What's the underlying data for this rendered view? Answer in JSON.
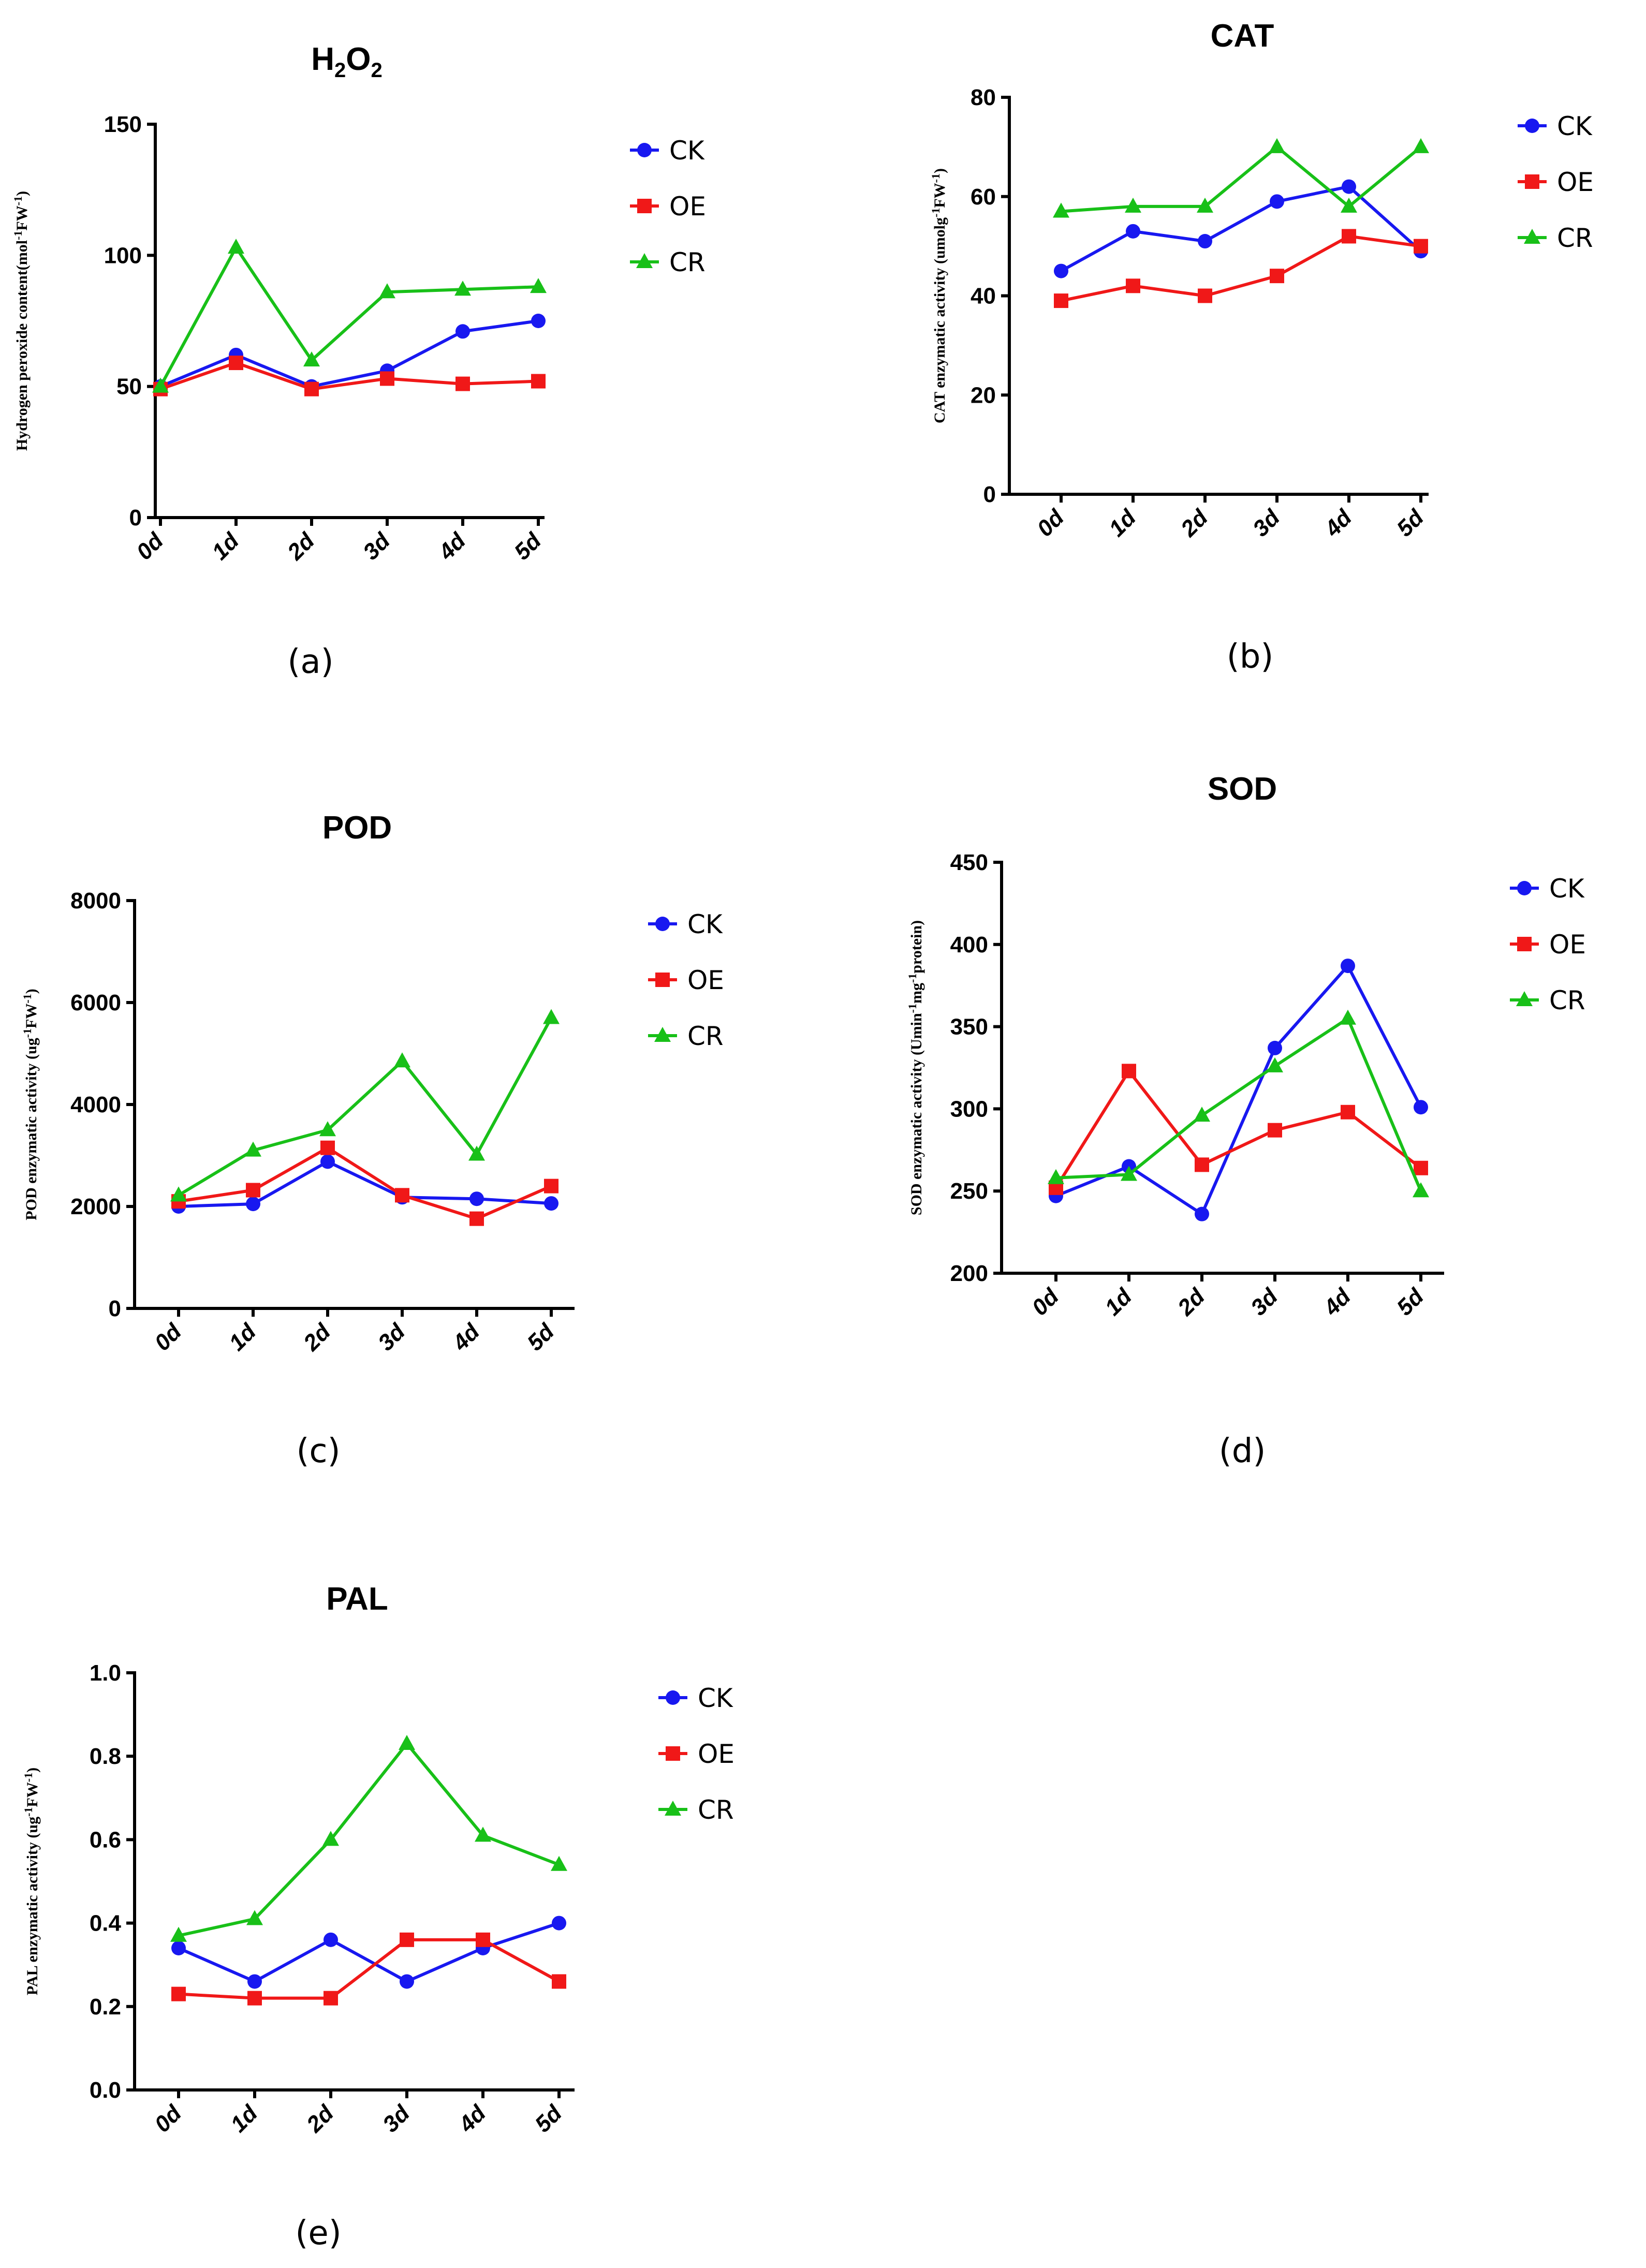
{
  "figure": {
    "colors": {
      "CK": "#1818f0",
      "OE": "#f01818",
      "CR": "#18c018"
    },
    "legend_labels": [
      "CK",
      "OE",
      "CR"
    ]
  },
  "chart_data": [
    {
      "id": "a",
      "type": "line",
      "title": "H2O2",
      "title_parts": {
        "base1": "H",
        "sub1": "2",
        "base2": "O",
        "sub2": "2"
      },
      "caption": "(a)",
      "ylabel": "Hydrogen peroxide content(mol-1FW-1)",
      "ylabel_parts": [
        [
          "Hydrogen peroxide content(mol",
          ""
        ],
        [
          "-1",
          "sup"
        ],
        [
          "FW",
          ""
        ],
        [
          "-1",
          "sup"
        ],
        [
          ")",
          ""
        ]
      ],
      "categories": [
        "0d",
        "1d",
        "2d",
        "3d",
        "4d",
        "5d"
      ],
      "ylim": [
        0,
        150
      ],
      "yticks": [
        "0",
        "50",
        "100",
        "150"
      ],
      "ytick_values": [
        0,
        50,
        100,
        150
      ],
      "series": [
        {
          "name": "CK",
          "marker": "circle",
          "values": [
            50,
            62,
            50,
            56,
            71,
            75
          ]
        },
        {
          "name": "OE",
          "marker": "square",
          "values": [
            49,
            59,
            49,
            53,
            51,
            52
          ]
        },
        {
          "name": "CR",
          "marker": "triangle",
          "values": [
            50,
            103,
            60,
            86,
            87,
            88
          ]
        }
      ]
    },
    {
      "id": "b",
      "type": "line",
      "title": "CAT",
      "caption": "(b)",
      "ylabel": "CAT enzymatic activity (umolg-1FW-1)",
      "ylabel_parts": [
        [
          "CAT enzymatic activity (umolg",
          ""
        ],
        [
          "-1",
          "sup"
        ],
        [
          "FW",
          ""
        ],
        [
          "-1",
          "sup"
        ],
        [
          ")",
          ""
        ]
      ],
      "categories": [
        "0d",
        "1d",
        "2d",
        "3d",
        "4d",
        "5d"
      ],
      "ylim": [
        0,
        80
      ],
      "yticks": [
        "0",
        "20",
        "40",
        "60",
        "80"
      ],
      "ytick_values": [
        0,
        20,
        40,
        60,
        80
      ],
      "series": [
        {
          "name": "CK",
          "marker": "circle",
          "values": [
            45,
            53,
            51,
            59,
            62,
            49
          ]
        },
        {
          "name": "OE",
          "marker": "square",
          "values": [
            39,
            42,
            40,
            44,
            52,
            50
          ]
        },
        {
          "name": "CR",
          "marker": "triangle",
          "values": [
            57,
            58,
            58,
            70,
            58,
            70
          ]
        }
      ]
    },
    {
      "id": "c",
      "type": "line",
      "title": "POD",
      "caption": "(c)",
      "ylabel": "POD enzymatic activity (ug-1FW-1)",
      "ylabel_parts": [
        [
          "POD enzymatic activity (ug",
          ""
        ],
        [
          "-1",
          "sup"
        ],
        [
          "FW",
          ""
        ],
        [
          "-1",
          "sup"
        ],
        [
          ")",
          ""
        ]
      ],
      "categories": [
        "0d",
        "1d",
        "2d",
        "3d",
        "4d",
        "5d"
      ],
      "ylim": [
        0,
        8000
      ],
      "yticks": [
        "0",
        "2000",
        "4000",
        "6000",
        "8000"
      ],
      "ytick_values": [
        0,
        2000,
        4000,
        6000,
        8000
      ],
      "series": [
        {
          "name": "CK",
          "marker": "circle",
          "values": [
            2000,
            2050,
            2880,
            2180,
            2150,
            2060
          ]
        },
        {
          "name": "OE",
          "marker": "square",
          "values": [
            2100,
            2320,
            3150,
            2220,
            1760,
            2400
          ]
        },
        {
          "name": "CR",
          "marker": "triangle",
          "values": [
            2220,
            3100,
            3500,
            4850,
            3020,
            5700
          ]
        }
      ]
    },
    {
      "id": "d",
      "type": "line",
      "title": "SOD",
      "caption": "(d)",
      "ylabel": "SOD enzymatic activity (Umin-1mg-1protein)",
      "ylabel_parts": [
        [
          "SOD enzymatic activity (Umin",
          ""
        ],
        [
          "-1",
          "sup"
        ],
        [
          "mg",
          ""
        ],
        [
          "-1",
          "sup"
        ],
        [
          "protein)",
          ""
        ]
      ],
      "categories": [
        "0d",
        "1d",
        "2d",
        "3d",
        "4d",
        "5d"
      ],
      "ylim": [
        200,
        450
      ],
      "yticks": [
        "200",
        "250",
        "300",
        "350",
        "400",
        "450"
      ],
      "ytick_values": [
        200,
        250,
        300,
        350,
        400,
        450
      ],
      "series": [
        {
          "name": "CK",
          "marker": "circle",
          "values": [
            247,
            265,
            236,
            337,
            387,
            301
          ]
        },
        {
          "name": "OE",
          "marker": "square",
          "values": [
            252,
            323,
            266,
            287,
            298,
            264
          ]
        },
        {
          "name": "CR",
          "marker": "triangle",
          "values": [
            258,
            260,
            296,
            326,
            355,
            250
          ]
        }
      ]
    },
    {
      "id": "e",
      "type": "line",
      "title": "PAL",
      "caption": "(e)",
      "ylabel": "PAL enzymatic activity (ug-1FW-1)",
      "ylabel_parts": [
        [
          "PAL enzymatic activity (ug",
          ""
        ],
        [
          "-1",
          "sup"
        ],
        [
          "FW",
          ""
        ],
        [
          "-1",
          "sup"
        ],
        [
          ")",
          ""
        ]
      ],
      "categories": [
        "0d",
        "1d",
        "2d",
        "3d",
        "4d",
        "5d"
      ],
      "ylim": [
        0.0,
        1.0
      ],
      "yticks": [
        "0.0",
        "0.2",
        "0.4",
        "0.6",
        "0.8",
        "1.0"
      ],
      "ytick_values": [
        0.0,
        0.2,
        0.4,
        0.6,
        0.8,
        1.0
      ],
      "series": [
        {
          "name": "CK",
          "marker": "circle",
          "values": [
            0.34,
            0.26,
            0.36,
            0.26,
            0.34,
            0.4
          ]
        },
        {
          "name": "OE",
          "marker": "square",
          "values": [
            0.23,
            0.22,
            0.22,
            0.36,
            0.36,
            0.26
          ]
        },
        {
          "name": "CR",
          "marker": "triangle",
          "values": [
            0.37,
            0.41,
            0.6,
            0.83,
            0.61,
            0.54
          ]
        }
      ]
    }
  ]
}
